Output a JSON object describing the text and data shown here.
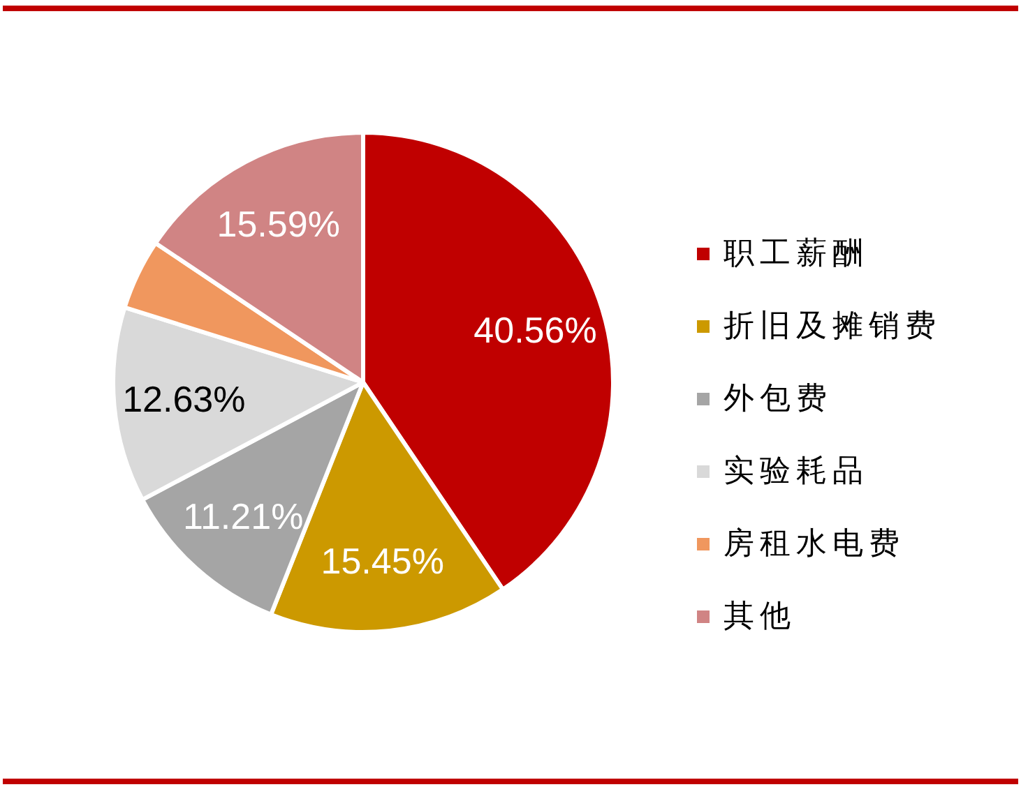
{
  "chart_data": {
    "type": "pie",
    "categories": [
      "职工薪酬",
      "折旧及摊销费",
      "外包费",
      "实验耗品",
      "房租水电费",
      "其他"
    ],
    "values": [
      40.56,
      15.45,
      11.21,
      12.63,
      4.56,
      15.59
    ],
    "colors": [
      "#c00000",
      "#cc9900",
      "#a5a5a5",
      "#d9d9d9",
      "#f0975e",
      "#d08484"
    ],
    "value_labels": [
      "40.56%",
      "15.45%",
      "11.21%",
      "12.63%",
      null,
      "15.59%"
    ],
    "legend": "right"
  }
}
